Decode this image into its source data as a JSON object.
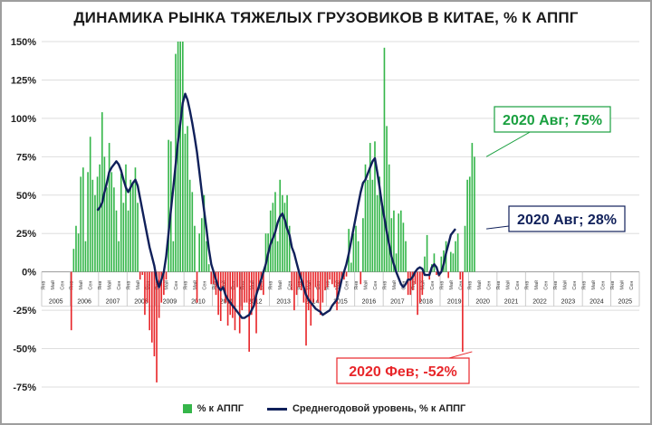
{
  "chart_data": {
    "type": "bar",
    "title": "ДИНАМИКА РЫНКА ТЯЖЕЛЫХ ГРУЗОВИКОВ В КИТАЕ, % К АППГ",
    "y_ticks": [
      "150%",
      "125%",
      "100%",
      "75%",
      "50%",
      "25%",
      "0%",
      "-25%",
      "-50%",
      "-75%"
    ],
    "ylim": [
      -75,
      150
    ],
    "month_labels": [
      "Янв",
      "Май",
      "Сен"
    ],
    "years": [
      "2005",
      "2006",
      "2007",
      "2008",
      "2009",
      "2010",
      "2011",
      "2012",
      "2013",
      "2014",
      "2015",
      "2016",
      "2017",
      "2018",
      "2019",
      "2020",
      "2021",
      "2022",
      "2023",
      "2024",
      "2025"
    ],
    "x_start": "2005-01",
    "colors": {
      "positive": "#35b64a",
      "negative": "#e8262a",
      "line": "#10205a",
      "callout_green": "#1aa040",
      "callout_blue": "#10205a",
      "callout_red": "#e8262a"
    },
    "series": [
      {
        "name": "% к АППГ",
        "start": "2006-01",
        "values": [
          -38,
          15,
          30,
          25,
          62,
          68,
          20,
          65,
          88,
          60,
          50,
          62,
          70,
          104,
          75,
          55,
          84,
          65,
          55,
          40,
          20,
          64,
          45,
          70,
          40,
          60,
          58,
          68,
          45,
          -5,
          -2,
          -28,
          -20,
          -38,
          -46,
          -55,
          -72,
          -30,
          -20,
          -15,
          -5,
          86,
          85,
          20,
          142,
          150,
          150,
          150,
          90,
          95,
          60,
          52,
          30,
          -20,
          25,
          35,
          50,
          20,
          5,
          -8,
          -8,
          -15,
          -28,
          -32,
          -10,
          -20,
          -35,
          -28,
          -30,
          -38,
          -10,
          -40,
          -25,
          -20,
          -20,
          -52,
          -28,
          -20,
          -40,
          -12,
          -12,
          -15,
          25,
          25,
          40,
          45,
          52,
          20,
          60,
          50,
          45,
          50,
          30,
          -12,
          -25,
          -15,
          -10,
          -12,
          -20,
          -48,
          -25,
          -35,
          -20,
          -10,
          -20,
          -28,
          -20,
          -12,
          -10,
          -5,
          -8,
          -10,
          -25,
          -12,
          -5,
          -5,
          -3,
          28,
          6,
          25,
          30,
          20,
          -8,
          35,
          70,
          60,
          84,
          60,
          85,
          50,
          62,
          45,
          146,
          95,
          70,
          35,
          40,
          12,
          38,
          40,
          32,
          20,
          -15,
          -15,
          -12,
          -8,
          -28,
          -20,
          -15,
          10,
          24,
          -5,
          5,
          12,
          -2,
          -3,
          10,
          14,
          20,
          -4,
          13,
          12,
          20,
          25,
          -5,
          -52,
          30,
          60,
          62,
          84,
          75
        ]
      },
      {
        "name": "Среднегодовой уровень, % к АППГ",
        "start": "2006-12",
        "values": [
          40,
          42,
          45,
          52,
          58,
          65,
          68,
          70,
          72,
          70,
          66,
          60,
          55,
          52,
          55,
          58,
          60,
          56,
          48,
          40,
          32,
          24,
          16,
          10,
          4,
          -5,
          -10,
          -5,
          0,
          10,
          25,
          40,
          55,
          70,
          85,
          97,
          110,
          116,
          112,
          105,
          97,
          88,
          78,
          65,
          52,
          40,
          28,
          15,
          5,
          0,
          -5,
          -10,
          -12,
          -10,
          -15,
          -18,
          -20,
          -22,
          -24,
          -26,
          -28,
          -30,
          -30,
          -29,
          -28,
          -25,
          -22,
          -15,
          -10,
          -5,
          0,
          5,
          12,
          18,
          22,
          26,
          32,
          36,
          38,
          34,
          28,
          24,
          16,
          12,
          6,
          0,
          -5,
          -10,
          -15,
          -18,
          -20,
          -22,
          -24,
          -25,
          -26,
          -28,
          -27,
          -26,
          -25,
          -22,
          -20,
          -18,
          -12,
          -5,
          0,
          5,
          12,
          20,
          28,
          36,
          44,
          52,
          58,
          60,
          64,
          68,
          72,
          74,
          65,
          55,
          44,
          35,
          26,
          18,
          10,
          5,
          0,
          -4,
          -8,
          -10,
          -8,
          -5,
          -5,
          -3,
          0,
          2,
          3,
          2,
          -2,
          -2,
          -2,
          3,
          5,
          3,
          -2,
          0,
          5,
          12,
          18,
          24,
          26,
          28
        ]
      }
    ],
    "callouts": {
      "green": "2020 Авг; 75%",
      "blue": "2020 Авг; 28%",
      "red": "2020 Фев; -52%"
    },
    "legend": [
      "% к АППГ",
      "Среднегодовой уровень, % к АППГ"
    ]
  }
}
